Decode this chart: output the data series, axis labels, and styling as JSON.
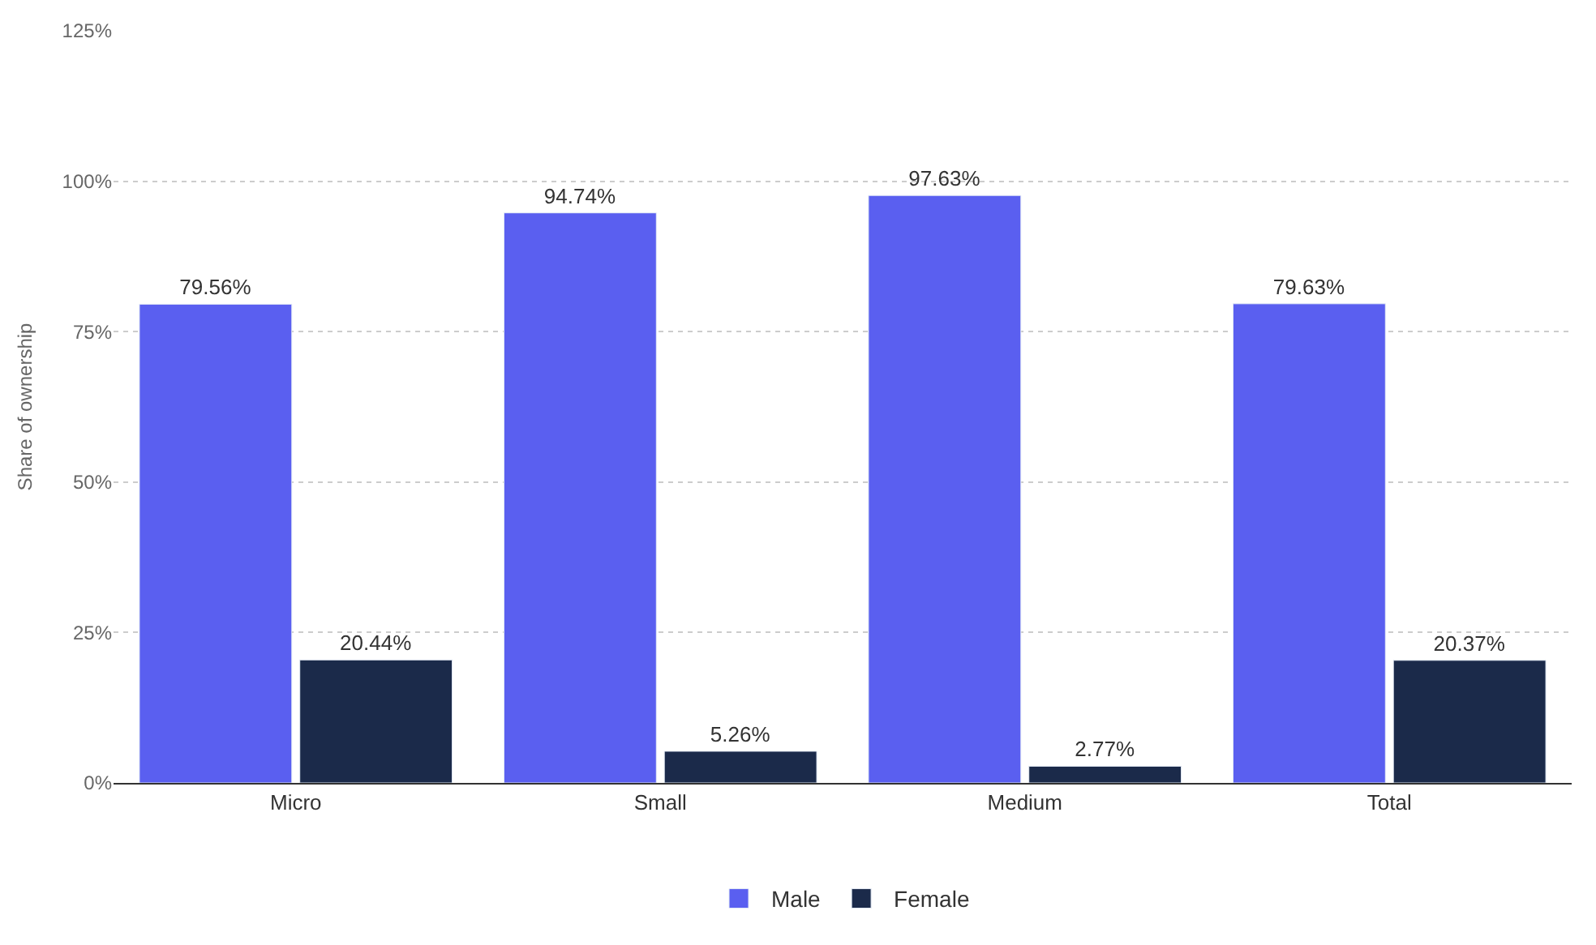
{
  "chart_data": {
    "type": "bar",
    "ylabel": "Share of ownership",
    "categories": [
      "Micro",
      "Small",
      "Medium",
      "Total"
    ],
    "series": [
      {
        "name": "Male",
        "color": "#5a5ff0",
        "values": [
          79.56,
          94.74,
          97.63,
          79.63
        ],
        "value_labels": [
          "79.56%",
          "94.74%",
          "97.63%",
          "79.63%"
        ]
      },
      {
        "name": "Female",
        "color": "#1b2a4a",
        "values": [
          20.44,
          5.26,
          2.77,
          20.37
        ],
        "value_labels": [
          "20.44%",
          "5.26%",
          "2.77%",
          "20.37%"
        ]
      }
    ],
    "ylim": [
      0,
      125
    ],
    "yticks": [
      {
        "value": 0,
        "label": "0%"
      },
      {
        "value": 25,
        "label": "25%"
      },
      {
        "value": 50,
        "label": "50%"
      },
      {
        "value": 75,
        "label": "75%"
      },
      {
        "value": 100,
        "label": "100%"
      },
      {
        "value": 125,
        "label": "125%"
      }
    ],
    "grid": "y",
    "legend": "bottom"
  }
}
